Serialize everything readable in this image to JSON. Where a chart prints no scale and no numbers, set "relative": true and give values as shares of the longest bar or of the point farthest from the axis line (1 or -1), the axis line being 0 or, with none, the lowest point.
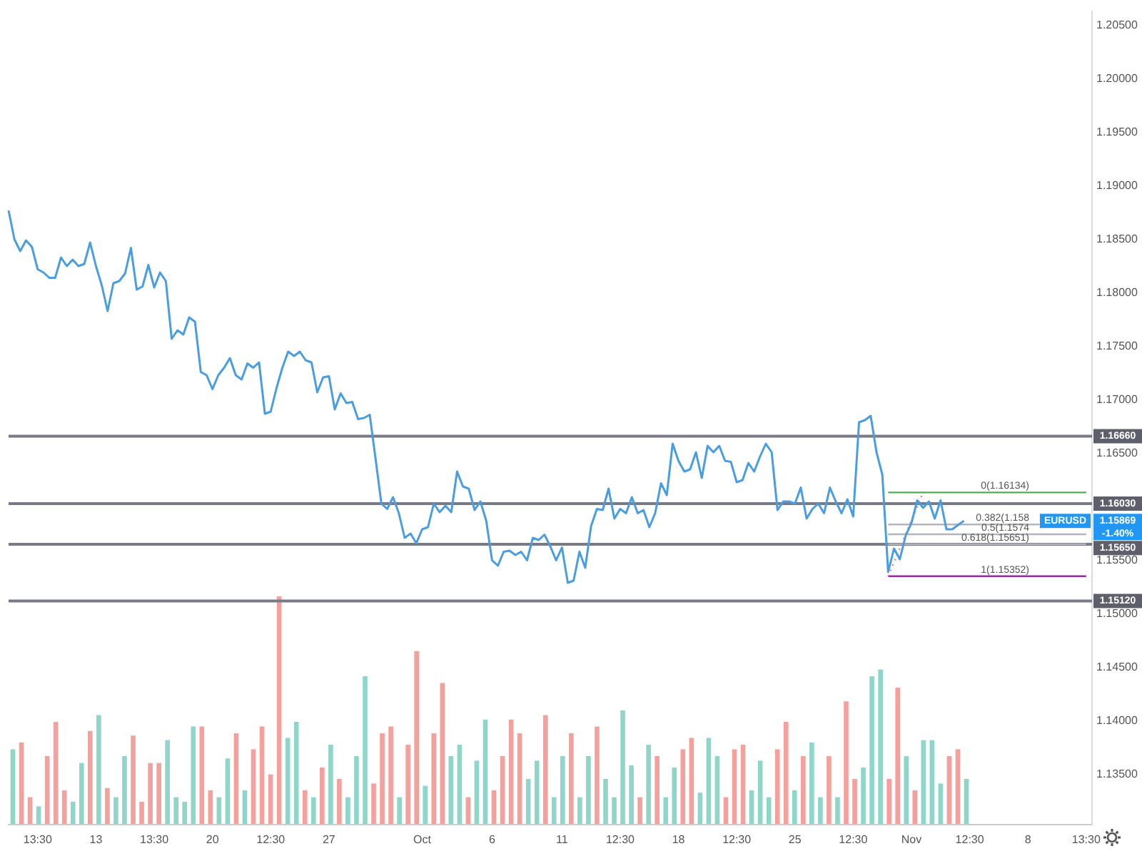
{
  "chart_data": [
    {
      "type": "line",
      "ylim": [
        1.1303,
        1.2063
      ],
      "categories": [
        null,
        null,
        null,
        null,
        null,
        "13:30",
        null,
        null,
        null,
        null,
        null,
        null,
        null,
        null,
        null,
        "13",
        null,
        null,
        null,
        null,
        null,
        null,
        null,
        null,
        null,
        "13:30",
        null,
        null,
        null,
        null,
        null,
        null,
        null,
        null,
        null,
        "20",
        null,
        null,
        null,
        null,
        null,
        null,
        null,
        null,
        null,
        "12:30",
        null,
        null,
        null,
        null,
        null,
        null,
        null,
        null,
        null,
        "27",
        null,
        null,
        null,
        null,
        null,
        null,
        null,
        null,
        null,
        null,
        null,
        null,
        null,
        null,
        null,
        "Oct",
        null,
        null,
        null,
        null,
        null,
        null,
        null,
        null,
        null,
        null,
        null,
        "6",
        null,
        null,
        null,
        null,
        null,
        null,
        null,
        null,
        null,
        null,
        null,
        "11",
        null,
        null,
        null,
        null,
        null,
        null,
        null,
        null,
        null,
        "12:30",
        null,
        null,
        null,
        null,
        null,
        null,
        null,
        null,
        null,
        "18",
        null,
        null,
        null,
        null,
        null,
        null,
        null,
        null,
        null,
        "12:30",
        null,
        null,
        null,
        null,
        null,
        null,
        null,
        null,
        null,
        "25",
        null,
        null,
        null,
        null,
        null,
        null,
        null,
        null,
        null,
        "12:30",
        null,
        null,
        null,
        null,
        null,
        null,
        null,
        null,
        null,
        "Nov",
        null,
        null,
        null,
        null,
        null,
        null,
        null,
        null,
        null,
        "12:30",
        null,
        null,
        null,
        null,
        null,
        null,
        null,
        null,
        null,
        "8",
        null,
        null,
        null,
        null,
        null,
        null,
        null,
        null,
        null,
        "13:30",
        null
      ],
      "yticks": [
        {
          "value": 1.135,
          "label": "1.13500"
        },
        {
          "value": 1.14,
          "label": "1.14000"
        },
        {
          "value": 1.145,
          "label": "1.14500"
        },
        {
          "value": 1.15,
          "label": "1.15000"
        },
        {
          "value": 1.155,
          "label": "1.15500"
        },
        {
          "value": 1.165,
          "label": "1.16500"
        },
        {
          "value": 1.17,
          "label": "1.17000"
        },
        {
          "value": 1.175,
          "label": "1.17500"
        },
        {
          "value": 1.18,
          "label": "1.18000"
        },
        {
          "value": 1.185,
          "label": "1.18500"
        },
        {
          "value": 1.19,
          "label": "1.19000"
        },
        {
          "value": 1.195,
          "label": "1.19500"
        },
        {
          "value": 1.2,
          "label": "1.20000"
        },
        {
          "value": 1.205,
          "label": "1.20500"
        }
      ],
      "series": [
        {
          "color": "#4a9ee0",
          "values": [
            1.1877,
            1.185,
            1.1839,
            1.1849,
            1.1843,
            1.1822,
            1.1819,
            1.1814,
            1.1814,
            1.1833,
            1.1825,
            1.1831,
            1.1825,
            1.1827,
            1.1847,
            1.1825,
            1.1807,
            1.1783,
            1.1809,
            1.1811,
            1.1818,
            1.1842,
            1.1803,
            1.1806,
            1.1826,
            1.1805,
            1.1819,
            1.1811,
            1.1757,
            1.1765,
            1.1761,
            1.1777,
            1.1773,
            1.1726,
            1.1723,
            1.171,
            1.1723,
            1.173,
            1.1739,
            1.1723,
            1.1719,
            1.1734,
            1.173,
            1.1735,
            1.1687,
            1.1689,
            1.1711,
            1.173,
            1.1745,
            1.1741,
            1.1745,
            1.1737,
            1.1735,
            1.1707,
            1.1721,
            1.1722,
            1.1691,
            1.1706,
            1.1697,
            1.1698,
            1.1682,
            1.1683,
            1.1686,
            1.1645,
            1.1603,
            1.1598,
            1.1609,
            1.1594,
            1.1571,
            1.1575,
            1.1566,
            1.1579,
            1.1581,
            1.1603,
            1.1595,
            1.1601,
            1.1595,
            1.1633,
            1.1619,
            1.1617,
            1.1597,
            1.1605,
            1.1587,
            1.155,
            1.1545,
            1.1558,
            1.1559,
            1.1555,
            1.1558,
            1.155,
            1.1571,
            1.1569,
            1.1574,
            1.1563,
            1.155,
            1.1562,
            1.1529,
            1.1531,
            1.1558,
            1.1543,
            1.1582,
            1.1598,
            1.1597,
            1.1617,
            1.1589,
            1.1598,
            1.1594,
            1.1609,
            1.1594,
            1.1597,
            1.1581,
            1.1594,
            1.1622,
            1.1611,
            1.1659,
            1.1643,
            1.1633,
            1.1635,
            1.1651,
            1.1627,
            1.1657,
            1.1651,
            1.1657,
            1.1643,
            1.1642,
            1.1623,
            1.1625,
            1.1641,
            1.1633,
            1.1647,
            1.1659,
            1.1651,
            1.1597,
            1.1605,
            1.1605,
            1.1603,
            1.1618,
            1.1589,
            1.1598,
            1.1603,
            1.1594,
            1.1618,
            1.1605,
            1.1594,
            1.1607,
            1.1591,
            1.1679,
            1.1681,
            1.1685,
            1.1651,
            1.163,
            1.1539,
            1.1561,
            1.1551,
            1.1573,
            1.1585,
            1.1606,
            1.1599,
            1.1605,
            1.1589,
            1.1606,
            1.1579,
            1.1579,
            1.1583,
            1.15869,
            null,
            null,
            null,
            null,
            null,
            null,
            null,
            null,
            null,
            null,
            null,
            null,
            null,
            null,
            null,
            null,
            null,
            null,
            null,
            null,
            null,
            null
          ]
        },
        {
          "color": "#f77c80",
          "line_style": "dotted",
          "values": [
            null,
            null,
            null,
            null,
            null,
            null,
            null,
            null,
            null,
            null,
            null,
            null,
            null,
            null,
            null,
            null,
            null,
            null,
            null,
            null,
            null,
            null,
            null,
            null,
            null,
            null,
            null,
            null,
            null,
            null,
            null,
            null,
            null,
            null,
            null,
            null,
            null,
            null,
            null,
            null,
            null,
            null,
            null,
            null,
            null,
            null,
            null,
            null,
            null,
            null,
            null,
            null,
            null,
            null,
            null,
            null,
            null,
            null,
            null,
            null,
            null,
            null,
            null,
            null,
            null,
            null,
            null,
            null,
            null,
            null,
            null,
            null,
            null,
            null,
            null,
            null,
            null,
            null,
            null,
            null,
            null,
            null,
            null,
            null,
            null,
            null,
            null,
            null,
            null,
            null,
            null,
            null,
            null,
            null,
            null,
            null,
            null,
            null,
            null,
            null,
            null,
            null,
            null,
            null,
            null,
            null,
            null,
            null,
            null,
            null,
            null,
            null,
            null,
            null,
            null,
            null,
            null,
            null,
            null,
            null,
            null,
            null,
            null,
            null,
            null,
            null,
            null,
            null,
            null,
            null,
            null,
            null,
            null,
            null,
            null,
            null,
            null,
            null,
            null,
            null,
            null,
            null,
            null,
            null,
            null,
            null,
            null,
            null,
            null,
            null,
            null,
            1.15352,
            1.15482,
            1.15613,
            1.15743,
            1.15873,
            1.16004,
            1.16134,
            null,
            null,
            null,
            null,
            null,
            null,
            null,
            null,
            null,
            null,
            null,
            null,
            null,
            null,
            null,
            null,
            null,
            null,
            null,
            null,
            null,
            null,
            null,
            null,
            null,
            null,
            null,
            null,
            null
          ]
        },
        {
          "name": "0(1.16134)",
          "color": "#4caf50",
          "values": [
            null,
            null,
            null,
            null,
            null,
            null,
            null,
            null,
            null,
            null,
            null,
            null,
            null,
            null,
            null,
            null,
            null,
            null,
            null,
            null,
            null,
            null,
            null,
            null,
            null,
            null,
            null,
            null,
            null,
            null,
            null,
            null,
            null,
            null,
            null,
            null,
            null,
            null,
            null,
            null,
            null,
            null,
            null,
            null,
            null,
            null,
            null,
            null,
            null,
            null,
            null,
            null,
            null,
            null,
            null,
            null,
            null,
            null,
            null,
            null,
            null,
            null,
            null,
            null,
            null,
            null,
            null,
            null,
            null,
            null,
            null,
            null,
            null,
            null,
            null,
            null,
            null,
            null,
            null,
            null,
            null,
            null,
            null,
            null,
            null,
            null,
            null,
            null,
            null,
            null,
            null,
            null,
            null,
            null,
            null,
            null,
            null,
            null,
            null,
            null,
            null,
            null,
            null,
            null,
            null,
            null,
            null,
            null,
            null,
            null,
            null,
            null,
            null,
            null,
            null,
            null,
            null,
            null,
            null,
            null,
            null,
            null,
            null,
            null,
            null,
            null,
            null,
            null,
            null,
            null,
            null,
            null,
            null,
            null,
            null,
            null,
            null,
            null,
            null,
            null,
            null,
            null,
            null,
            null,
            null,
            null,
            null,
            null,
            null,
            null,
            null,
            1.16134,
            1.16134,
            1.16134,
            1.16134,
            1.16134,
            1.16134,
            1.16134,
            1.16134,
            1.16134,
            1.16134,
            1.16134,
            1.16134,
            1.16134,
            1.16134,
            1.16134,
            1.16134,
            1.16134,
            1.16134,
            1.16134,
            1.16134,
            1.16134,
            1.16134,
            1.16134,
            1.16134,
            1.16134,
            1.16134,
            1.16134,
            1.16134,
            1.16134,
            1.16134,
            1.16134,
            1.16134,
            1.16134,
            1.16134,
            1.16134,
            null
          ]
        },
        {
          "name": "0.382(1.158",
          "color": "#b2b5be",
          "values": [
            null,
            null,
            null,
            null,
            null,
            null,
            null,
            null,
            null,
            null,
            null,
            null,
            null,
            null,
            null,
            null,
            null,
            null,
            null,
            null,
            null,
            null,
            null,
            null,
            null,
            null,
            null,
            null,
            null,
            null,
            null,
            null,
            null,
            null,
            null,
            null,
            null,
            null,
            null,
            null,
            null,
            null,
            null,
            null,
            null,
            null,
            null,
            null,
            null,
            null,
            null,
            null,
            null,
            null,
            null,
            null,
            null,
            null,
            null,
            null,
            null,
            null,
            null,
            null,
            null,
            null,
            null,
            null,
            null,
            null,
            null,
            null,
            null,
            null,
            null,
            null,
            null,
            null,
            null,
            null,
            null,
            null,
            null,
            null,
            null,
            null,
            null,
            null,
            null,
            null,
            null,
            null,
            null,
            null,
            null,
            null,
            null,
            null,
            null,
            null,
            null,
            null,
            null,
            null,
            null,
            null,
            null,
            null,
            null,
            null,
            null,
            null,
            null,
            null,
            null,
            null,
            null,
            null,
            null,
            null,
            null,
            null,
            null,
            null,
            null,
            null,
            null,
            null,
            null,
            null,
            null,
            null,
            null,
            null,
            null,
            null,
            null,
            null,
            null,
            null,
            null,
            null,
            null,
            null,
            null,
            null,
            null,
            null,
            null,
            null,
            null,
            1.15835,
            1.15835,
            1.15835,
            1.15835,
            1.15835,
            1.15835,
            1.15835,
            1.15835,
            1.15835,
            1.15835,
            1.15835,
            1.15835,
            1.15835,
            1.15835,
            1.15835,
            1.15835,
            1.15835,
            1.15835,
            1.15835,
            1.15835,
            1.15835,
            1.15835,
            1.15835,
            1.15835,
            1.15835,
            1.15835,
            1.15835,
            null,
            null,
            null,
            null,
            null,
            null,
            null,
            null,
            null
          ]
        },
        {
          "name": "0.5(1.1574",
          "color": "#b2b5be",
          "values": [
            null,
            null,
            null,
            null,
            null,
            null,
            null,
            null,
            null,
            null,
            null,
            null,
            null,
            null,
            null,
            null,
            null,
            null,
            null,
            null,
            null,
            null,
            null,
            null,
            null,
            null,
            null,
            null,
            null,
            null,
            null,
            null,
            null,
            null,
            null,
            null,
            null,
            null,
            null,
            null,
            null,
            null,
            null,
            null,
            null,
            null,
            null,
            null,
            null,
            null,
            null,
            null,
            null,
            null,
            null,
            null,
            null,
            null,
            null,
            null,
            null,
            null,
            null,
            null,
            null,
            null,
            null,
            null,
            null,
            null,
            null,
            null,
            null,
            null,
            null,
            null,
            null,
            null,
            null,
            null,
            null,
            null,
            null,
            null,
            null,
            null,
            null,
            null,
            null,
            null,
            null,
            null,
            null,
            null,
            null,
            null,
            null,
            null,
            null,
            null,
            null,
            null,
            null,
            null,
            null,
            null,
            null,
            null,
            null,
            null,
            null,
            null,
            null,
            null,
            null,
            null,
            null,
            null,
            null,
            null,
            null,
            null,
            null,
            null,
            null,
            null,
            null,
            null,
            null,
            null,
            null,
            null,
            null,
            null,
            null,
            null,
            null,
            null,
            null,
            null,
            null,
            null,
            null,
            null,
            null,
            null,
            null,
            null,
            null,
            null,
            null,
            1.15743,
            1.15743,
            1.15743,
            1.15743,
            1.15743,
            1.15743,
            1.15743,
            1.15743,
            1.15743,
            1.15743,
            1.15743,
            1.15743,
            1.15743,
            1.15743,
            1.15743,
            1.15743,
            1.15743,
            1.15743,
            1.15743,
            1.15743,
            1.15743,
            1.15743,
            1.15743,
            1.15743,
            1.15743,
            1.15743,
            1.15743,
            1.15743,
            1.15743,
            1.15743,
            1.15743,
            1.15743,
            1.15743,
            1.15743,
            1.15743,
            null
          ]
        },
        {
          "name": "0.618(1.15651)",
          "color": "#b2b5be",
          "values": [
            null,
            null,
            null,
            null,
            null,
            null,
            null,
            null,
            null,
            null,
            null,
            null,
            null,
            null,
            null,
            null,
            null,
            null,
            null,
            null,
            null,
            null,
            null,
            null,
            null,
            null,
            null,
            null,
            null,
            null,
            null,
            null,
            null,
            null,
            null,
            null,
            null,
            null,
            null,
            null,
            null,
            null,
            null,
            null,
            null,
            null,
            null,
            null,
            null,
            null,
            null,
            null,
            null,
            null,
            null,
            null,
            null,
            null,
            null,
            null,
            null,
            null,
            null,
            null,
            null,
            null,
            null,
            null,
            null,
            null,
            null,
            null,
            null,
            null,
            null,
            null,
            null,
            null,
            null,
            null,
            null,
            null,
            null,
            null,
            null,
            null,
            null,
            null,
            null,
            null,
            null,
            null,
            null,
            null,
            null,
            null,
            null,
            null,
            null,
            null,
            null,
            null,
            null,
            null,
            null,
            null,
            null,
            null,
            null,
            null,
            null,
            null,
            null,
            null,
            null,
            null,
            null,
            null,
            null,
            null,
            null,
            null,
            null,
            null,
            null,
            null,
            null,
            null,
            null,
            null,
            null,
            null,
            null,
            null,
            null,
            null,
            null,
            null,
            null,
            null,
            null,
            null,
            null,
            null,
            null,
            null,
            null,
            null,
            null,
            null,
            null,
            1.15651,
            1.15651,
            1.15651,
            1.15651,
            1.15651,
            1.15651,
            1.15651,
            1.15651,
            1.15651,
            1.15651,
            1.15651,
            1.15651,
            1.15651,
            1.15651,
            1.15651,
            1.15651,
            1.15651,
            1.15651,
            1.15651,
            1.15651,
            1.15651,
            1.15651,
            1.15651,
            1.15651,
            1.15651,
            1.15651,
            1.15651,
            1.15651,
            1.15651,
            1.15651,
            1.15651,
            1.15651,
            1.15651,
            1.15651,
            1.15651,
            null
          ]
        },
        {
          "name": "1(1.15352)",
          "color": "#9c27b0",
          "values": [
            null,
            null,
            null,
            null,
            null,
            null,
            null,
            null,
            null,
            null,
            null,
            null,
            null,
            null,
            null,
            null,
            null,
            null,
            null,
            null,
            null,
            null,
            null,
            null,
            null,
            null,
            null,
            null,
            null,
            null,
            null,
            null,
            null,
            null,
            null,
            null,
            null,
            null,
            null,
            null,
            null,
            null,
            null,
            null,
            null,
            null,
            null,
            null,
            null,
            null,
            null,
            null,
            null,
            null,
            null,
            null,
            null,
            null,
            null,
            null,
            null,
            null,
            null,
            null,
            null,
            null,
            null,
            null,
            null,
            null,
            null,
            null,
            null,
            null,
            null,
            null,
            null,
            null,
            null,
            null,
            null,
            null,
            null,
            null,
            null,
            null,
            null,
            null,
            null,
            null,
            null,
            null,
            null,
            null,
            null,
            null,
            null,
            null,
            null,
            null,
            null,
            null,
            null,
            null,
            null,
            null,
            null,
            null,
            null,
            null,
            null,
            null,
            null,
            null,
            null,
            null,
            null,
            null,
            null,
            null,
            null,
            null,
            null,
            null,
            null,
            null,
            null,
            null,
            null,
            null,
            null,
            null,
            null,
            null,
            null,
            null,
            null,
            null,
            null,
            null,
            null,
            null,
            null,
            null,
            null,
            null,
            null,
            null,
            null,
            null,
            null,
            1.15352,
            1.15352,
            1.15352,
            1.15352,
            1.15352,
            1.15352,
            1.15352,
            1.15352,
            1.15352,
            1.15352,
            1.15352,
            1.15352,
            1.15352,
            1.15352,
            1.15352,
            1.15352,
            1.15352,
            1.15352,
            1.15352,
            1.15352,
            1.15352,
            1.15352,
            1.15352,
            1.15352,
            1.15352,
            1.15352,
            1.15352,
            1.15352,
            1.15352,
            1.15352,
            1.15352,
            1.15352,
            1.15352,
            1.15352,
            1.15352,
            null
          ]
        }
      ],
      "ref_lines": [
        {
          "axis": "y",
          "value": 1.1666,
          "label": "1.16660",
          "color": "#787b86"
        },
        {
          "axis": "y",
          "value": 1.1603,
          "label": "1.16030",
          "color": "#787b86"
        },
        {
          "axis": "y",
          "value": 1.1565,
          "label": "1.15650",
          "color": "#787b86"
        },
        {
          "axis": "y",
          "value": 1.1512,
          "label": "1.15120",
          "color": "#787b86"
        }
      ],
      "annotations": [
        "EURUSD",
        "1.15869",
        "-1.40%"
      ],
      "grid": false,
      "legend": false
    },
    {
      "type": "bar",
      "relative": true,
      "categories": [
        null,
        null,
        null,
        null,
        null,
        null,
        null,
        null,
        null,
        null,
        null,
        null,
        null,
        null,
        null,
        null,
        null,
        null,
        null,
        null,
        null,
        null,
        null,
        null,
        null,
        null,
        null,
        null,
        null,
        null,
        null,
        null,
        null,
        null,
        null,
        null,
        null,
        null,
        null,
        null,
        null,
        null,
        null,
        null,
        null,
        null,
        null,
        null,
        null,
        null,
        null,
        null,
        null,
        null,
        null,
        null,
        null,
        null,
        null,
        null,
        null,
        null,
        null,
        null,
        null,
        null,
        null,
        null,
        null,
        null,
        null,
        null,
        null,
        null,
        null,
        null,
        null,
        null,
        null,
        null,
        null,
        null,
        null,
        null,
        null,
        null,
        null,
        null,
        null,
        null,
        null,
        null,
        null,
        null,
        null,
        null,
        null,
        null,
        null,
        null,
        null,
        null,
        null,
        null,
        null,
        null,
        null,
        null,
        null,
        null,
        null,
        null
      ],
      "values": [
        0.33,
        0.36,
        0.12,
        0.08,
        0.3,
        0.45,
        0.15,
        0.1,
        0.27,
        0.41,
        0.48,
        0.16,
        0.12,
        0.3,
        0.39,
        0.1,
        0.27,
        0.27,
        0.37,
        0.12,
        0.1,
        0.43,
        0.43,
        0.15,
        0.12,
        0.29,
        0.4,
        0.15,
        0.33,
        0.43,
        0.22,
        1,
        0.38,
        0.45,
        0.15,
        0.12,
        0.25,
        0.35,
        0.2,
        0.12,
        0.3,
        0.65,
        0.18,
        0.4,
        0.43,
        0.12,
        0.35,
        0.76,
        0.17,
        0.4,
        0.62,
        0.3,
        0.35,
        0.12,
        0.28,
        0.46,
        0.15,
        0.3,
        0.46,
        0.4,
        0.2,
        0.28,
        0.48,
        0.12,
        0.3,
        0.4,
        0.12,
        0.3,
        0.43,
        0.2,
        0.12,
        0.5,
        0.26,
        0.12,
        0.35,
        0.3,
        0.12,
        0.25,
        0.33,
        0.38,
        0.14,
        0.38,
        0.3,
        0.12,
        0.33,
        0.35,
        0.15,
        0.28,
        0.12,
        0.33,
        0.45,
        0.15,
        0.3,
        0.36,
        0.12,
        0.3,
        0.12,
        0.54,
        0.2,
        0.25,
        0.65,
        0.68,
        0.2,
        0.6,
        0.3,
        0.15,
        0.37,
        0.37,
        0.18,
        0.3,
        0.33,
        0.2
      ],
      "colors": [
        "#8fd6c9",
        "#f4a09c",
        "#f4a09c",
        "#8fd6c9",
        "#f4a09c",
        "#f4a09c",
        "#f4a09c",
        "#8fd6c9",
        "#8fd6c9",
        "#f4a09c",
        "#8fd6c9",
        "#f4a09c",
        "#8fd6c9",
        "#8fd6c9",
        "#f4a09c",
        "#f4a09c",
        "#f4a09c",
        "#f4a09c",
        "#8fd6c9",
        "#8fd6c9",
        "#8fd6c9",
        "#8fd6c9",
        "#f4a09c",
        "#f4a09c",
        "#8fd6c9",
        "#8fd6c9",
        "#f4a09c",
        "#8fd6c9",
        "#f4a09c",
        "#f4a09c",
        "#f4a09c",
        "#f4a09c",
        "#8fd6c9",
        "#8fd6c9",
        "#f4a09c",
        "#8fd6c9",
        "#f4a09c",
        "#8fd6c9",
        "#f4a09c",
        "#8fd6c9",
        "#8fd6c9",
        "#8fd6c9",
        "#f4a09c",
        "#f4a09c",
        "#f4a09c",
        "#8fd6c9",
        "#f4a09c",
        "#f4a09c",
        "#8fd6c9",
        "#f4a09c",
        "#f4a09c",
        "#8fd6c9",
        "#8fd6c9",
        "#f4a09c",
        "#8fd6c9",
        "#8fd6c9",
        "#f4a09c",
        "#f4a09c",
        "#f4a09c",
        "#f4a09c",
        "#8fd6c9",
        "#8fd6c9",
        "#f4a09c",
        "#8fd6c9",
        "#8fd6c9",
        "#f4a09c",
        "#8fd6c9",
        "#8fd6c9",
        "#f4a09c",
        "#8fd6c9",
        "#8fd6c9",
        "#8fd6c9",
        "#8fd6c9",
        "#f4a09c",
        "#8fd6c9",
        "#f4a09c",
        "#8fd6c9",
        "#8fd6c9",
        "#f4a09c",
        "#f4a09c",
        "#8fd6c9",
        "#8fd6c9",
        "#8fd6c9",
        "#f4a09c",
        "#f4a09c",
        "#f4a09c",
        "#8fd6c9",
        "#8fd6c9",
        "#8fd6c9",
        "#f4a09c",
        "#f4a09c",
        "#8fd6c9",
        "#f4a09c",
        "#8fd6c9",
        "#8fd6c9",
        "#f4a09c",
        "#8fd6c9",
        "#f4a09c",
        "#f4a09c",
        "#8fd6c9",
        "#8fd6c9",
        "#8fd6c9",
        "#f4a09c",
        "#f4a09c",
        "#8fd6c9",
        "#f4a09c",
        "#8fd6c9",
        "#8fd6c9",
        "#8fd6c9",
        "#f4a09c",
        "#f4a09c",
        "#8fd6c9"
      ]
    }
  ]
}
